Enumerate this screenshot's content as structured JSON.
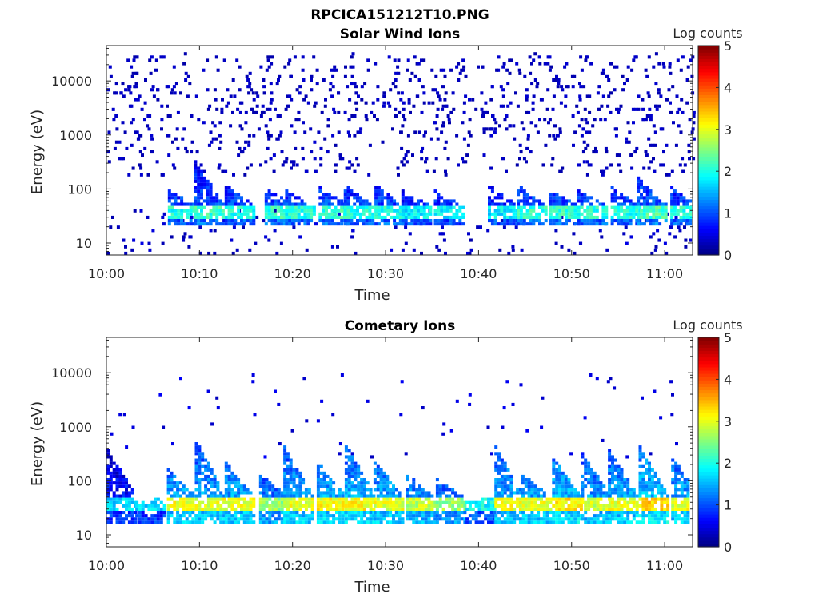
{
  "figure": {
    "file_title": "RPCICA151212T10.PNG"
  },
  "chart_data": [
    {
      "type": "heatmap",
      "title": "Solar Wind Ions",
      "xlabel": "Time",
      "ylabel": "Energy (eV)",
      "x_ticks": [
        "10:00",
        "10:10",
        "10:20",
        "10:30",
        "10:40",
        "10:50",
        "11:00"
      ],
      "y_ticks": [
        "10",
        "100",
        "1000",
        "10000"
      ],
      "y_scale": "log",
      "ylim": [
        6,
        45000
      ],
      "xlim_minutes": [
        0,
        63
      ],
      "colorbar": {
        "label": "Log counts",
        "ticks": [
          "0",
          "1",
          "2",
          "3",
          "4",
          "5"
        ],
        "range": [
          0,
          5
        ],
        "colormap": "jet"
      },
      "grid": false,
      "bursts": [
        {
          "t": 7.2,
          "peak": 2.0,
          "top": 90
        },
        {
          "t": 10.0,
          "peak": 2.1,
          "top": 300
        },
        {
          "t": 13.3,
          "peak": 2.0,
          "top": 110
        },
        {
          "t": 17.6,
          "peak": 2.1,
          "top": 100
        },
        {
          "t": 19.8,
          "peak": 2.0,
          "top": 90
        },
        {
          "t": 23.4,
          "peak": 2.1,
          "top": 100
        },
        {
          "t": 26.1,
          "peak": 2.0,
          "top": 110
        },
        {
          "t": 29.4,
          "peak": 2.0,
          "top": 110
        },
        {
          "t": 32.3,
          "peak": 1.8,
          "top": 90
        },
        {
          "t": 35.8,
          "peak": 1.8,
          "top": 90
        },
        {
          "t": 41.6,
          "peak": 1.8,
          "top": 110
        },
        {
          "t": 44.7,
          "peak": 2.1,
          "top": 110
        },
        {
          "t": 48.2,
          "peak": 2.1,
          "top": 90
        },
        {
          "t": 51.2,
          "peak": 2.0,
          "top": 90
        },
        {
          "t": 54.8,
          "peak": 2.0,
          "top": 100
        },
        {
          "t": 57.6,
          "peak": 2.2,
          "top": 150
        },
        {
          "t": 61.2,
          "peak": 2.0,
          "top": 100
        }
      ]
    },
    {
      "type": "heatmap",
      "title": "Cometary Ions",
      "xlabel": "Time",
      "ylabel": "Energy (eV)",
      "x_ticks": [
        "10:00",
        "10:10",
        "10:20",
        "10:30",
        "10:40",
        "10:50",
        "11:00"
      ],
      "y_ticks": [
        "10",
        "100",
        "1000",
        "10000"
      ],
      "y_scale": "log",
      "ylim": [
        6,
        45000
      ],
      "xlim_minutes": [
        0,
        63
      ],
      "colorbar": {
        "label": "Log counts",
        "ticks": [
          "0",
          "1",
          "2",
          "3",
          "4",
          "5"
        ],
        "range": [
          0,
          5
        ],
        "colormap": "jet"
      },
      "grid": false,
      "bursts": [
        {
          "t": 0.6,
          "peak": 1.7,
          "top": 350
        },
        {
          "t": 3.7,
          "peak": 1.7,
          "top": 40
        },
        {
          "t": 7.1,
          "peak": 3.0,
          "top": 160
        },
        {
          "t": 10.1,
          "peak": 3.0,
          "top": 550
        },
        {
          "t": 13.3,
          "peak": 3.0,
          "top": 200
        },
        {
          "t": 17.0,
          "peak": 2.6,
          "top": 120
        },
        {
          "t": 19.6,
          "peak": 3.0,
          "top": 400
        },
        {
          "t": 23.2,
          "peak": 3.1,
          "top": 200
        },
        {
          "t": 26.2,
          "peak": 3.1,
          "top": 450
        },
        {
          "t": 29.3,
          "peak": 3.0,
          "top": 220
        },
        {
          "t": 32.8,
          "peak": 2.8,
          "top": 120
        },
        {
          "t": 36.0,
          "peak": 2.6,
          "top": 100
        },
        {
          "t": 39.2,
          "peak": 1.9,
          "top": 40
        },
        {
          "t": 42.3,
          "peak": 3.0,
          "top": 400
        },
        {
          "t": 45.2,
          "peak": 3.0,
          "top": 120
        },
        {
          "t": 48.5,
          "peak": 3.2,
          "top": 250
        },
        {
          "t": 51.6,
          "peak": 2.9,
          "top": 300
        },
        {
          "t": 54.5,
          "peak": 3.0,
          "top": 350
        },
        {
          "t": 57.8,
          "peak": 3.3,
          "top": 400
        },
        {
          "t": 61.3,
          "peak": 3.0,
          "top": 250
        }
      ]
    }
  ]
}
